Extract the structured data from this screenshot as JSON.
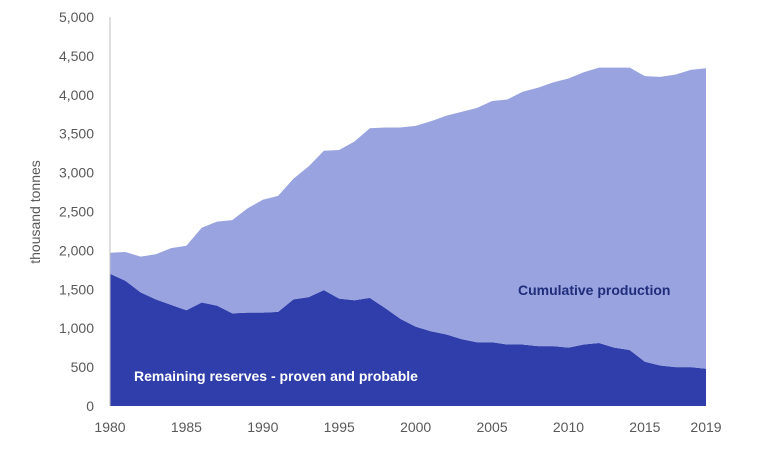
{
  "chart_data": {
    "type": "area",
    "stacked": true,
    "title": "",
    "xlabel": "",
    "ylabel": "thousand tonnes",
    "ylim": [
      0,
      5000
    ],
    "xlim": [
      1980,
      2019
    ],
    "yticks": [
      0,
      500,
      1000,
      1500,
      2000,
      2500,
      3000,
      3500,
      4000,
      4500,
      5000
    ],
    "ytick_labels": [
      "0",
      "500",
      "1,000",
      "1,500",
      "2,000",
      "2,500",
      "3,000",
      "3,500",
      "4,000",
      "4,500",
      "5,000"
    ],
    "xticks": [
      1980,
      1985,
      1990,
      1995,
      2000,
      2005,
      2010,
      2015,
      2019
    ],
    "xtick_labels": [
      "1980",
      "1985",
      "1990",
      "1995",
      "2000",
      "2005",
      "2010",
      "2015",
      "2019"
    ],
    "grid": false,
    "x": [
      1980,
      1981,
      1982,
      1983,
      1984,
      1985,
      1986,
      1987,
      1988,
      1989,
      1990,
      1991,
      1992,
      1993,
      1994,
      1995,
      1996,
      1997,
      1998,
      1999,
      2000,
      2001,
      2002,
      2003,
      2004,
      2005,
      2006,
      2007,
      2008,
      2009,
      2010,
      2011,
      2012,
      2013,
      2014,
      2015,
      2016,
      2017,
      2018,
      2019
    ],
    "series": [
      {
        "name": "Remaining reserves - proven and probable",
        "color": "#2f3eaa",
        "label_color": "#ffffff",
        "values": [
          1700,
          1610,
          1460,
          1370,
          1300,
          1230,
          1330,
          1290,
          1190,
          1200,
          1200,
          1210,
          1370,
          1400,
          1490,
          1380,
          1360,
          1390,
          1260,
          1120,
          1020,
          960,
          920,
          860,
          820,
          820,
          790,
          790,
          770,
          770,
          750,
          790,
          810,
          750,
          720,
          570,
          520,
          500,
          500,
          480
        ]
      },
      {
        "name": "Cumulative production",
        "color": "#98a3e0",
        "label_color": "#1f2d7a",
        "values": [
          270,
          370,
          460,
          580,
          730,
          830,
          960,
          1080,
          1200,
          1340,
          1450,
          1490,
          1550,
          1680,
          1790,
          1910,
          2040,
          2180,
          2320,
          2460,
          2580,
          2700,
          2810,
          2920,
          3010,
          3100,
          3150,
          3250,
          3320,
          3390,
          3460,
          3500,
          3540,
          3600,
          3630,
          3670,
          3710,
          3760,
          3820,
          3860
        ]
      }
    ]
  }
}
